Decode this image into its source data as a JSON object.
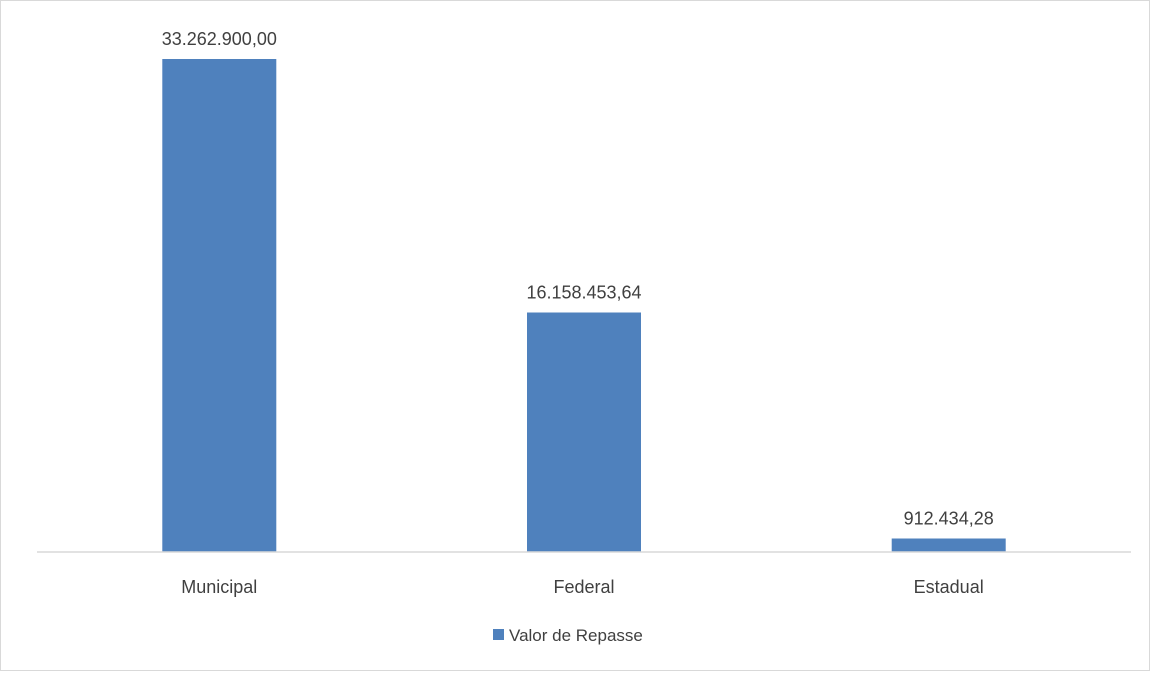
{
  "chart_data": {
    "type": "bar",
    "categories": [
      "Municipal",
      "Federal",
      "Estadual"
    ],
    "series": [
      {
        "name": "Valor de Repasse",
        "values": [
          33262900.0,
          16158453.64,
          912434.28
        ],
        "labels": [
          "33.262.900,00",
          "16.158.453,64",
          "912.434,28"
        ]
      }
    ],
    "ylim": [
      0,
      34000000
    ],
    "grid": false,
    "legend_position": "bottom",
    "colors": {
      "bar": "#4f81bd",
      "axis": "#d9d9d9",
      "text": "#404040"
    }
  }
}
